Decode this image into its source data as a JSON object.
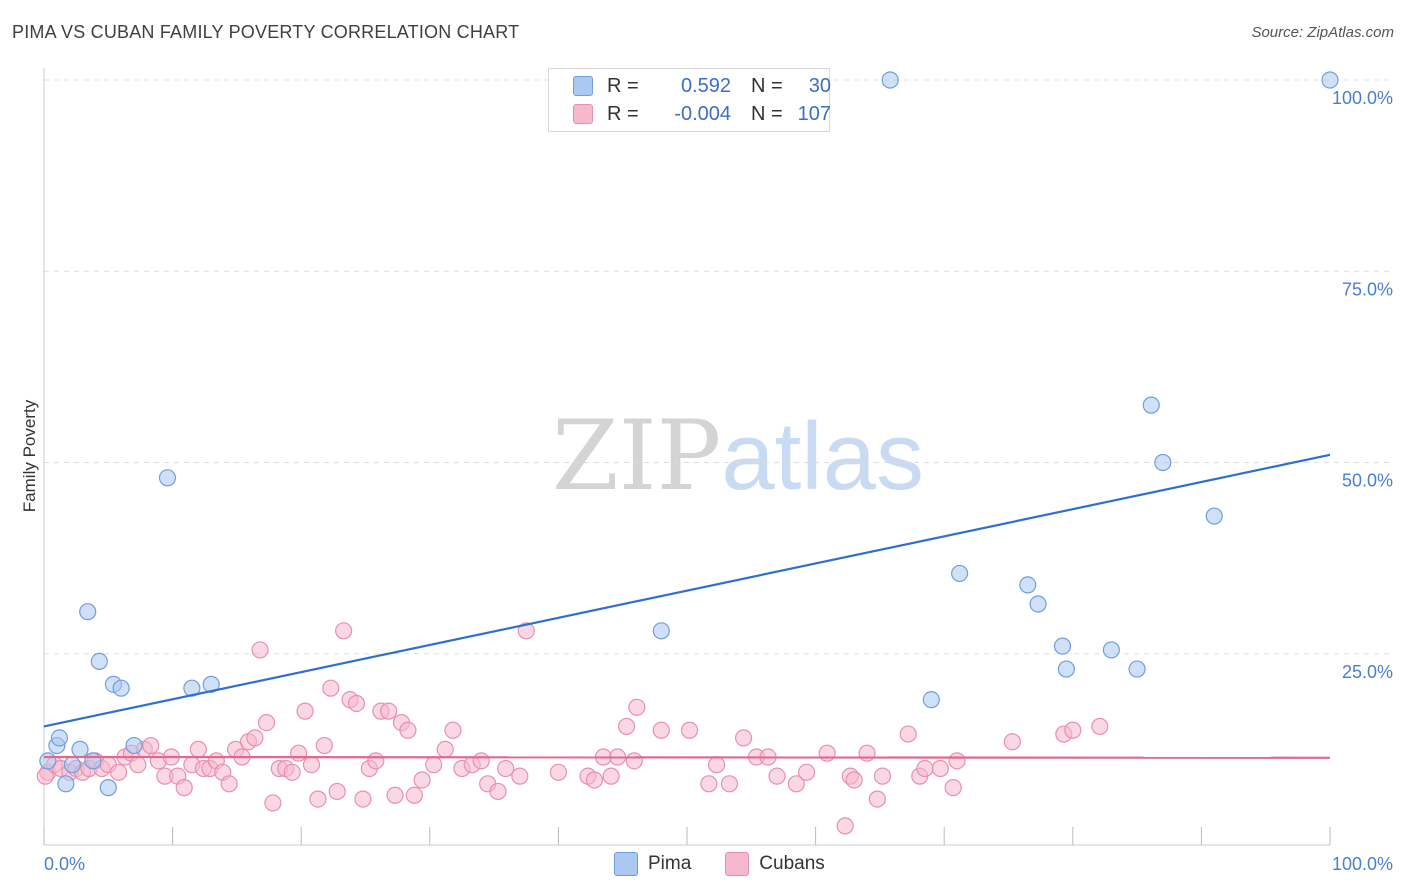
{
  "title": "PIMA VS CUBAN FAMILY POVERTY CORRELATION CHART",
  "source": "Source: ZipAtlas.com",
  "watermark": {
    "zip": "ZIP",
    "atlas": "atlas"
  },
  "legend": {
    "rows": [
      {
        "r_label": "R =",
        "r_value": "0.592",
        "n_label": "N =",
        "n_value": "30"
      },
      {
        "r_label": "R =",
        "r_value": "-0.004",
        "n_label": "N =",
        "n_value": "107"
      }
    ]
  },
  "colors": {
    "pima_fill": "#aac8f0",
    "pima_stroke": "#6f9fdc",
    "pima_line": "#2f6fcf",
    "cubans_fill": "#f6b8cc",
    "cubans_stroke": "#e890ae",
    "cubans_line": "#e06890",
    "grid": "#dddddd",
    "axis_text": "#4a7fd0"
  },
  "chart_data": {
    "type": "scatter",
    "title": "PIMA VS CUBAN FAMILY POVERTY CORRELATION CHART",
    "xlabel": "",
    "ylabel": "Family Poverty",
    "xlim": [
      0,
      100
    ],
    "ylim": [
      0,
      100
    ],
    "x_tick_labels": [
      "0.0%",
      "100.0%"
    ],
    "y_tick_labels": [
      "25.0%",
      "50.0%",
      "75.0%",
      "100.0%"
    ],
    "y_ticks": [
      25,
      50,
      75,
      100
    ],
    "grid": "horizontal dashed",
    "legend_position": "bottom",
    "series": [
      {
        "name": "Pima",
        "points": [
          [
            0.3,
            11.0
          ],
          [
            1.0,
            13.0
          ],
          [
            1.2,
            14.0
          ],
          [
            1.7,
            8.0
          ],
          [
            2.2,
            10.5
          ],
          [
            2.8,
            12.5
          ],
          [
            3.4,
            30.5
          ],
          [
            3.8,
            11.0
          ],
          [
            4.3,
            24.0
          ],
          [
            5.0,
            7.5
          ],
          [
            5.4,
            21.0
          ],
          [
            6.0,
            20.5
          ],
          [
            7.0,
            13.0
          ],
          [
            9.6,
            48.0
          ],
          [
            11.5,
            20.5
          ],
          [
            13.0,
            21.0
          ],
          [
            48.0,
            28.0
          ],
          [
            65.8,
            100.0
          ],
          [
            69.0,
            19.0
          ],
          [
            71.2,
            35.5
          ],
          [
            76.5,
            34.0
          ],
          [
            77.3,
            31.5
          ],
          [
            79.2,
            26.0
          ],
          [
            79.5,
            23.0
          ],
          [
            83.0,
            25.5
          ],
          [
            85.0,
            23.0
          ],
          [
            86.1,
            57.5
          ],
          [
            87.0,
            50.0
          ],
          [
            91.0,
            43.0
          ],
          [
            100.0,
            100.0
          ]
        ],
        "trend": {
          "x": [
            0,
            100
          ],
          "y": [
            15.5,
            51.0
          ]
        }
      },
      {
        "name": "Cubans",
        "points": [
          [
            0.3,
            9.5
          ],
          [
            0.8,
            10.5
          ],
          [
            1.3,
            10.0
          ],
          [
            2.0,
            9.5
          ],
          [
            2.5,
            10.0
          ],
          [
            3.0,
            9.5
          ],
          [
            3.5,
            10.0
          ],
          [
            4.0,
            11.0
          ],
          [
            4.5,
            10.0
          ],
          [
            5.0,
            10.5
          ],
          [
            5.8,
            9.5
          ],
          [
            6.3,
            11.5
          ],
          [
            6.8,
            12.0
          ],
          [
            7.3,
            10.5
          ],
          [
            7.8,
            12.5
          ],
          [
            8.3,
            13.0
          ],
          [
            8.9,
            11.0
          ],
          [
            9.4,
            9.0
          ],
          [
            9.9,
            11.5
          ],
          [
            10.4,
            9.0
          ],
          [
            10.9,
            7.5
          ],
          [
            11.5,
            10.5
          ],
          [
            12.0,
            12.5
          ],
          [
            12.4,
            10.0
          ],
          [
            12.9,
            10.0
          ],
          [
            13.4,
            11.0
          ],
          [
            13.9,
            9.5
          ],
          [
            14.4,
            8.0
          ],
          [
            14.9,
            12.5
          ],
          [
            15.4,
            11.5
          ],
          [
            15.9,
            13.5
          ],
          [
            16.4,
            14.0
          ],
          [
            16.8,
            25.5
          ],
          [
            17.3,
            16.0
          ],
          [
            17.8,
            5.5
          ],
          [
            18.3,
            10.0
          ],
          [
            18.8,
            10.0
          ],
          [
            19.3,
            9.5
          ],
          [
            19.8,
            12.0
          ],
          [
            20.3,
            17.5
          ],
          [
            20.8,
            10.5
          ],
          [
            21.3,
            6.0
          ],
          [
            21.8,
            13.0
          ],
          [
            22.3,
            20.5
          ],
          [
            22.8,
            7.0
          ],
          [
            23.3,
            28.0
          ],
          [
            23.8,
            19.0
          ],
          [
            24.3,
            18.5
          ],
          [
            24.8,
            6.0
          ],
          [
            25.3,
            10.0
          ],
          [
            25.8,
            11.0
          ],
          [
            26.2,
            17.5
          ],
          [
            26.8,
            17.5
          ],
          [
            27.3,
            6.5
          ],
          [
            27.8,
            16.0
          ],
          [
            28.3,
            15.0
          ],
          [
            28.8,
            6.5
          ],
          [
            29.4,
            8.5
          ],
          [
            30.3,
            10.5
          ],
          [
            31.2,
            12.5
          ],
          [
            31.8,
            15.0
          ],
          [
            32.5,
            10.0
          ],
          [
            33.3,
            10.5
          ],
          [
            34.0,
            11.0
          ],
          [
            34.5,
            8.0
          ],
          [
            35.3,
            7.0
          ],
          [
            35.9,
            10.0
          ],
          [
            37.0,
            9.0
          ],
          [
            37.5,
            28.0
          ],
          [
            40.0,
            9.5
          ],
          [
            42.3,
            9.0
          ],
          [
            42.8,
            8.5
          ],
          [
            43.5,
            11.5
          ],
          [
            44.1,
            9.0
          ],
          [
            44.6,
            11.5
          ],
          [
            45.3,
            15.5
          ],
          [
            45.9,
            11.0
          ],
          [
            46.1,
            18.0
          ],
          [
            48.0,
            15.0
          ],
          [
            50.2,
            15.0
          ],
          [
            51.7,
            8.0
          ],
          [
            52.3,
            10.5
          ],
          [
            53.3,
            8.0
          ],
          [
            54.4,
            14.0
          ],
          [
            55.4,
            11.5
          ],
          [
            56.3,
            11.5
          ],
          [
            57.0,
            9.0
          ],
          [
            58.5,
            8.0
          ],
          [
            59.3,
            9.5
          ],
          [
            60.9,
            12.0
          ],
          [
            62.3,
            2.5
          ],
          [
            62.7,
            9.0
          ],
          [
            63.0,
            8.5
          ],
          [
            64.0,
            12.0
          ],
          [
            64.8,
            6.0
          ],
          [
            65.2,
            9.0
          ],
          [
            67.2,
            14.5
          ],
          [
            68.1,
            9.0
          ],
          [
            68.5,
            10.0
          ],
          [
            69.7,
            10.0
          ],
          [
            70.7,
            7.5
          ],
          [
            71.0,
            11.0
          ],
          [
            75.3,
            13.5
          ],
          [
            79.3,
            14.5
          ],
          [
            80.0,
            15.0
          ],
          [
            82.1,
            15.5
          ],
          [
            0.1,
            9.0
          ]
        ],
        "trend": {
          "x": [
            0,
            100
          ],
          "y": [
            11.5,
            11.4
          ]
        }
      }
    ]
  }
}
